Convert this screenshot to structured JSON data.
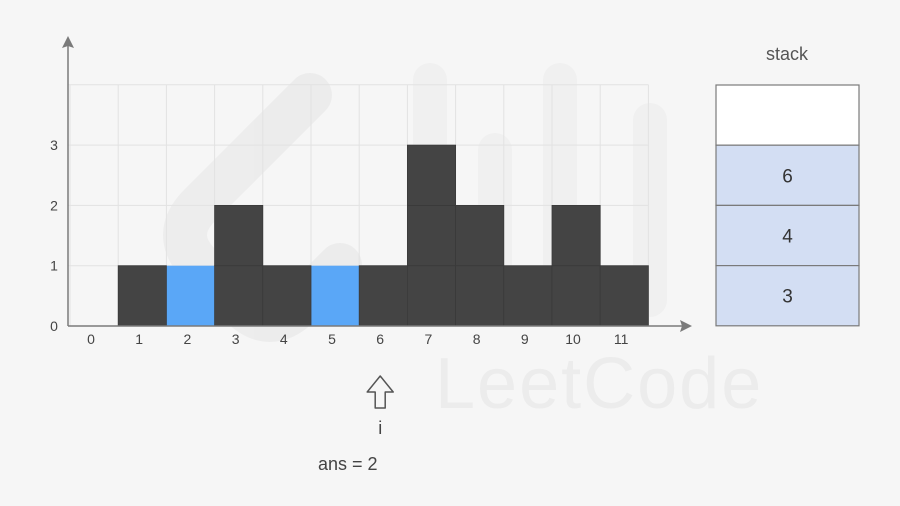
{
  "colors": {
    "background": "#f6f6f6",
    "bar": "#444444",
    "bar_highlight": "#5aa7f7",
    "grid": "#e2e2e2",
    "axis": "#7a7a7a",
    "label": "#444444",
    "stack_fill": "#d3def3",
    "stack_border": "#7a7a7a",
    "watermark": "#ececec"
  },
  "chart_data": {
    "type": "bar",
    "categories": [
      "0",
      "1",
      "2",
      "3",
      "4",
      "5",
      "6",
      "7",
      "8",
      "9",
      "10",
      "11"
    ],
    "values": [
      0,
      1,
      0,
      2,
      1,
      0,
      1,
      3,
      2,
      1,
      2,
      1
    ],
    "highlight_water": [
      {
        "x": "2",
        "level": 1
      },
      {
        "x": "5",
        "level": 1
      }
    ],
    "y_ticks": [
      "0",
      "1",
      "2",
      "3"
    ],
    "ylim": [
      0,
      4
    ],
    "grid": true
  },
  "pointer": {
    "icon": "up-arrow-icon",
    "position": "6",
    "label": "i"
  },
  "answer_text": "ans = 2",
  "stack": {
    "title": "stack",
    "capacity": 4,
    "items": [
      "6",
      "4",
      "3"
    ]
  },
  "watermark": {
    "icon": "leetcode-logo-icon",
    "text": "LeetCode"
  }
}
